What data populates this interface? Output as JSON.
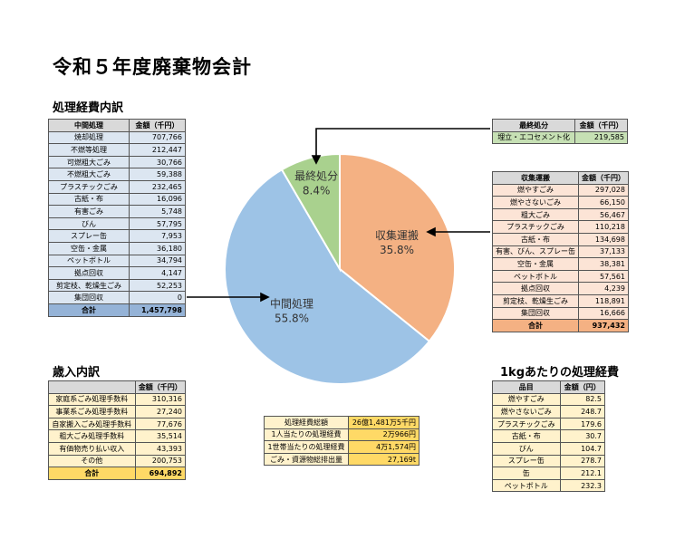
{
  "title": "令和５年度廃棄物会計",
  "sections": {
    "shori": "処理経費内訳",
    "sainyu": "歳入内訳",
    "per_kg": "1kgあたりの処理経費"
  },
  "chuukan_table": {
    "headers": [
      "中間処理",
      "金額（千円）"
    ],
    "rows": [
      [
        "焼却処理",
        "707,766"
      ],
      [
        "不燃等処理",
        "212,447"
      ],
      [
        "可燃粗大ごみ",
        "30,766"
      ],
      [
        "不燃粗大ごみ",
        "59,388"
      ],
      [
        "プラスチックごみ",
        "232,465"
      ],
      [
        "古紙・布",
        "16,096"
      ],
      [
        "有害ごみ",
        "5,748"
      ],
      [
        "びん",
        "57,795"
      ],
      [
        "スプレー缶",
        "7,953"
      ],
      [
        "空缶・金属",
        "36,180"
      ],
      [
        "ペットボトル",
        "34,794"
      ],
      [
        "拠点回収",
        "4,147"
      ],
      [
        "剪定枝、乾燥生ごみ",
        "52,253"
      ],
      [
        "集団回収",
        "0"
      ]
    ],
    "total": [
      "合計",
      "1,457,798"
    ]
  },
  "saishu_table": {
    "headers": [
      "最終処分",
      "金額（千円）"
    ],
    "rows": [
      [
        "埋立・エコセメント化",
        "219,585"
      ]
    ]
  },
  "shushu_table": {
    "headers": [
      "収集運搬",
      "金額（千円）"
    ],
    "rows": [
      [
        "燃やすごみ",
        "297,028"
      ],
      [
        "燃やさないごみ",
        "66,150"
      ],
      [
        "粗大ごみ",
        "56,467"
      ],
      [
        "プラスチックごみ",
        "110,218"
      ],
      [
        "古紙・布",
        "134,698"
      ],
      [
        "有害、びん、スプレー缶",
        "37,133"
      ],
      [
        "空缶・金属",
        "38,381"
      ],
      [
        "ペットボトル",
        "57,561"
      ],
      [
        "拠点回収",
        "4,239"
      ],
      [
        "剪定枝、乾燥生ごみ",
        "118,891"
      ],
      [
        "集団回収",
        "16,666"
      ]
    ],
    "total": [
      "合計",
      "937,432"
    ]
  },
  "sainyu_table": {
    "headers": [
      "",
      "金額（千円）"
    ],
    "rows": [
      [
        "家庭系ごみ処理手数料",
        "310,316"
      ],
      [
        "事業系ごみ処理手数料",
        "27,240"
      ],
      [
        "自家搬入ごみ処理手数料",
        "77,676"
      ],
      [
        "粗大ごみ処理手数料",
        "35,514"
      ],
      [
        "有価物売り払い収入",
        "43,393"
      ],
      [
        "その他",
        "200,753"
      ]
    ],
    "total": [
      "合計",
      "694,892"
    ]
  },
  "summary_table": {
    "rows": [
      [
        "処理経費総額",
        "26億1,481万5千円"
      ],
      [
        "1人当たりの処理経費",
        "2万966円"
      ],
      [
        "1世帯当たりの処理経費",
        "4万1,574円"
      ],
      [
        "ごみ・資源物総排出量",
        "27,169t"
      ]
    ]
  },
  "perkg_table": {
    "headers": [
      "品目",
      "金額（円）"
    ],
    "rows": [
      [
        "燃やすごみ",
        "82.5"
      ],
      [
        "燃やさないごみ",
        "248.7"
      ],
      [
        "プラスチックごみ",
        "179.6"
      ],
      [
        "古紙・布",
        "30.7"
      ],
      [
        "びん",
        "104.7"
      ],
      [
        "スプレー缶",
        "278.7"
      ],
      [
        "缶",
        "212.1"
      ],
      [
        "ペットボトル",
        "232.3"
      ]
    ]
  },
  "chart_data": {
    "type": "pie",
    "slices": [
      {
        "label": "収集運搬",
        "pct_label": "35.8%",
        "value": 35.8,
        "color": "#f4b183"
      },
      {
        "label": "中間処理",
        "pct_label": "55.8%",
        "value": 55.8,
        "color": "#9dc3e6"
      },
      {
        "label": "最終処分",
        "pct_label": "8.4%",
        "value": 8.4,
        "color": "#a9d18e"
      }
    ],
    "start_angle_deg": 0,
    "direction": "clockwise"
  },
  "colors": {
    "blue_cell": "#dce6f1",
    "orange_cell": "#fce4d6",
    "green_cell": "#c6e0b4",
    "yellow_cell": "#fff2cc"
  }
}
